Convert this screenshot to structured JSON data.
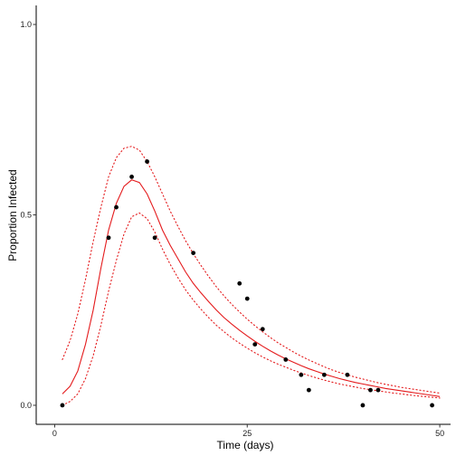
{
  "chart_data": {
    "type": "scatter",
    "title": "",
    "xlabel": "Time (days)",
    "ylabel": "Proportion Infected",
    "xlim": [
      -2.4,
      51.4
    ],
    "ylim": [
      -0.05,
      1.05
    ],
    "x_ticks": [
      0,
      25,
      50
    ],
    "x_tick_labels": [
      "0",
      "25",
      "50"
    ],
    "y_ticks": [
      0.0,
      0.5,
      1.0
    ],
    "y_tick_labels": [
      "0.0",
      "0.5",
      "1.0"
    ],
    "grid": false,
    "legend": "none",
    "colors": {
      "points": "#000000",
      "fit": "#e41a1c",
      "band": "#e41a1c",
      "axis": "#000000"
    },
    "series": [
      {
        "kind": "points",
        "x": [
          1,
          7,
          8,
          10,
          12,
          13,
          18,
          24,
          25,
          26,
          27,
          30,
          32,
          33,
          35,
          38,
          40,
          41,
          42,
          49
        ],
        "y": [
          0.0,
          0.44,
          0.52,
          0.6,
          0.64,
          0.44,
          0.4,
          0.32,
          0.28,
          0.16,
          0.2,
          0.12,
          0.08,
          0.04,
          0.08,
          0.08,
          0.0,
          0.04,
          0.04,
          0.0
        ]
      },
      {
        "kind": "line",
        "style": "solid",
        "x": [
          1,
          2,
          3,
          4,
          5,
          6,
          7,
          8,
          9,
          10,
          11,
          12,
          13,
          14,
          15,
          16,
          17,
          18,
          19,
          20,
          21,
          22,
          23,
          24,
          25,
          26,
          27,
          28,
          29,
          30,
          31,
          32,
          33,
          34,
          35,
          36,
          37,
          38,
          39,
          40,
          41,
          42,
          43,
          44,
          45,
          46,
          47,
          48,
          49,
          50
        ],
        "y": [
          0.03,
          0.05,
          0.09,
          0.16,
          0.25,
          0.36,
          0.46,
          0.53,
          0.575,
          0.592,
          0.585,
          0.555,
          0.51,
          0.46,
          0.42,
          0.385,
          0.35,
          0.32,
          0.295,
          0.272,
          0.25,
          0.23,
          0.213,
          0.197,
          0.182,
          0.168,
          0.155,
          0.143,
          0.132,
          0.122,
          0.113,
          0.104,
          0.096,
          0.089,
          0.082,
          0.076,
          0.07,
          0.065,
          0.06,
          0.056,
          0.052,
          0.048,
          0.044,
          0.041,
          0.038,
          0.035,
          0.032,
          0.029,
          0.026,
          0.023
        ]
      },
      {
        "kind": "line",
        "style": "dotted",
        "x": [
          1,
          2,
          3,
          4,
          5,
          6,
          7,
          8,
          9,
          10,
          11,
          12,
          13,
          14,
          15,
          16,
          17,
          18,
          19,
          20,
          21,
          22,
          23,
          24,
          25,
          26,
          27,
          28,
          29,
          30,
          31,
          32,
          33,
          34,
          35,
          36,
          37,
          38,
          39,
          40,
          41,
          42,
          43,
          44,
          45,
          46,
          47,
          48,
          49,
          50
        ],
        "y": [
          0.12,
          0.17,
          0.24,
          0.33,
          0.43,
          0.52,
          0.6,
          0.65,
          0.675,
          0.68,
          0.67,
          0.64,
          0.6,
          0.555,
          0.51,
          0.47,
          0.432,
          0.398,
          0.367,
          0.338,
          0.311,
          0.287,
          0.265,
          0.245,
          0.226,
          0.209,
          0.193,
          0.178,
          0.164,
          0.152,
          0.14,
          0.129,
          0.119,
          0.11,
          0.101,
          0.093,
          0.086,
          0.08,
          0.074,
          0.069,
          0.064,
          0.059,
          0.055,
          0.051,
          0.047,
          0.044,
          0.041,
          0.038,
          0.035,
          0.032
        ]
      },
      {
        "kind": "line",
        "style": "dotted",
        "x": [
          1,
          2,
          3,
          4,
          5,
          6,
          7,
          8,
          9,
          10,
          11,
          12,
          13,
          14,
          15,
          16,
          17,
          18,
          19,
          20,
          21,
          22,
          23,
          24,
          25,
          26,
          27,
          28,
          29,
          30,
          31,
          32,
          33,
          34,
          35,
          36,
          37,
          38,
          39,
          40,
          41,
          42,
          43,
          44,
          45,
          46,
          47,
          48,
          49,
          50
        ],
        "y": [
          0.0,
          0.01,
          0.03,
          0.07,
          0.13,
          0.21,
          0.3,
          0.38,
          0.45,
          0.495,
          0.505,
          0.49,
          0.455,
          0.41,
          0.37,
          0.335,
          0.303,
          0.276,
          0.252,
          0.23,
          0.21,
          0.193,
          0.177,
          0.163,
          0.15,
          0.138,
          0.127,
          0.117,
          0.108,
          0.1,
          0.092,
          0.085,
          0.078,
          0.072,
          0.066,
          0.061,
          0.056,
          0.052,
          0.048,
          0.044,
          0.041,
          0.038,
          0.035,
          0.032,
          0.03,
          0.027,
          0.025,
          0.023,
          0.021,
          0.019
        ]
      }
    ]
  }
}
